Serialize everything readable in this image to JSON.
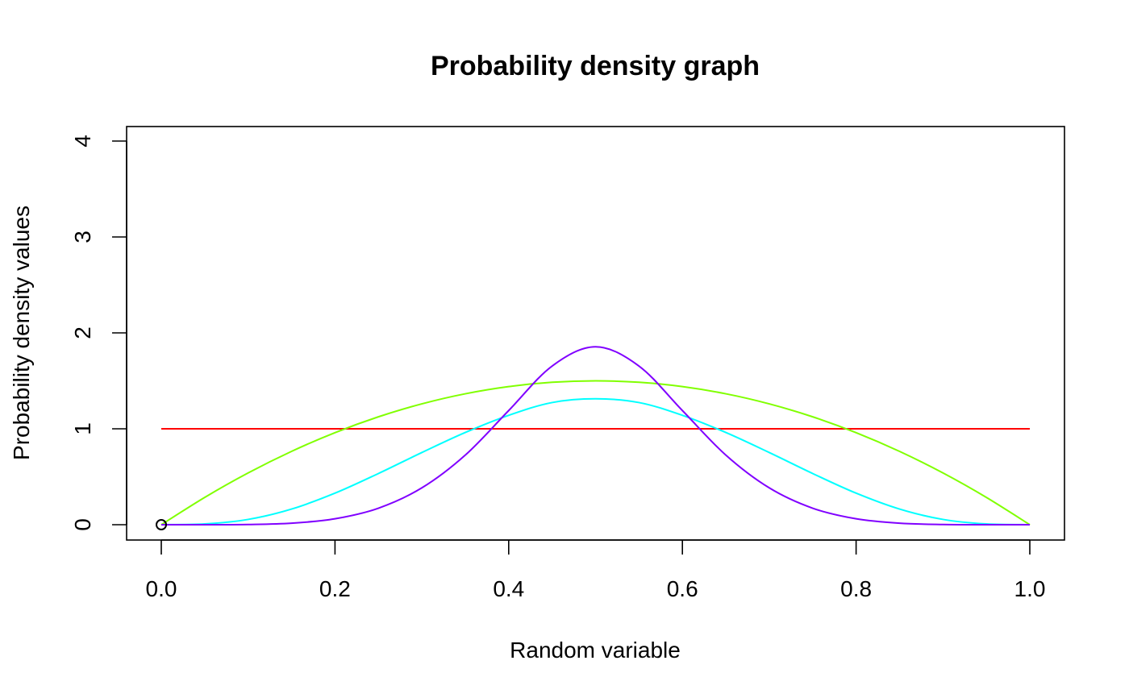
{
  "chart_data": {
    "type": "line",
    "title": "Probability density graph",
    "xlabel": "Random variable",
    "ylabel": "Probability density values",
    "xlim": [
      0,
      1
    ],
    "ylim": [
      0,
      4
    ],
    "x_ticks": [
      0.0,
      0.2,
      0.4,
      0.6,
      0.8,
      1.0
    ],
    "x_tick_labels": [
      "0.0",
      "0.2",
      "0.4",
      "0.6",
      "0.8",
      "1.0"
    ],
    "y_ticks": [
      0,
      1,
      2,
      3,
      4
    ],
    "y_tick_labels": [
      "0",
      "1",
      "2",
      "3",
      "4"
    ],
    "grid": false,
    "legend": "none",
    "x": [
      0.0,
      0.05,
      0.1,
      0.15,
      0.2,
      0.25,
      0.3,
      0.35,
      0.4,
      0.45,
      0.5,
      0.55,
      0.6,
      0.65,
      0.7,
      0.75,
      0.8,
      0.85,
      0.9,
      0.95,
      1.0
    ],
    "series": [
      {
        "color": "#ff0000",
        "values": [
          1,
          1,
          1,
          1,
          1,
          1,
          1,
          1,
          1,
          1,
          1,
          1,
          1,
          1,
          1,
          1,
          1,
          1,
          1,
          1,
          1
        ]
      },
      {
        "color": "#80ff00",
        "values": [
          0,
          0.285,
          0.54,
          0.765,
          0.96,
          1.125,
          1.26,
          1.365,
          1.44,
          1.485,
          1.5,
          1.485,
          1.44,
          1.365,
          1.26,
          1.125,
          0.96,
          0.765,
          0.54,
          0.285,
          0
        ]
      },
      {
        "color": "#00ffff",
        "values": [
          0,
          0.0081,
          0.0552,
          0.1632,
          0.329,
          0.5339,
          0.7526,
          0.9616,
          1.1406,
          1.2735,
          1.3125,
          1.2735,
          1.1406,
          0.9616,
          0.7526,
          0.5339,
          0.329,
          0.1632,
          0.0552,
          0.0081,
          0
        ]
      },
      {
        "color": "#8000ff",
        "values": [
          0,
          0.0001,
          0.0023,
          0.0157,
          0.0617,
          0.1721,
          0.3841,
          0.7258,
          1.1901,
          1.6542,
          1.8546,
          1.6542,
          1.1901,
          0.7258,
          0.3841,
          0.1721,
          0.0617,
          0.0157,
          0.0023,
          0.0001,
          0
        ]
      }
    ],
    "points": [
      {
        "x": 0,
        "y": 0,
        "marker": "open-circle"
      }
    ]
  }
}
